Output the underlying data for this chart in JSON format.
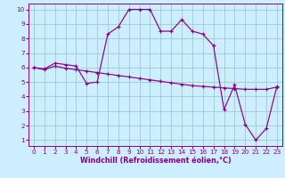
{
  "xlabel": "Windchill (Refroidissement éolien,°C)",
  "bg_color": "#cceeff",
  "grid_color": "#99cccc",
  "line_color": "#880088",
  "x_ticks": [
    0,
    1,
    2,
    3,
    4,
    5,
    6,
    7,
    8,
    9,
    10,
    11,
    12,
    13,
    14,
    15,
    16,
    17,
    18,
    19,
    20,
    21,
    22,
    23
  ],
  "y_ticks": [
    1,
    2,
    3,
    4,
    5,
    6,
    7,
    8,
    9,
    10
  ],
  "ylim": [
    0.6,
    10.4
  ],
  "xlim": [
    -0.5,
    23.5
  ],
  "line1_x": [
    0,
    1,
    2,
    3,
    4,
    5,
    6,
    7,
    8,
    9,
    10,
    11,
    12,
    13,
    14,
    15,
    16,
    17,
    18,
    19,
    20,
    21,
    22,
    23
  ],
  "line1_y": [
    6.0,
    5.9,
    6.3,
    6.2,
    6.1,
    4.9,
    5.0,
    8.3,
    8.8,
    10.0,
    10.0,
    10.0,
    8.5,
    8.5,
    9.3,
    8.5,
    8.3,
    7.5,
    3.1,
    4.8,
    2.1,
    1.0,
    1.8,
    4.7
  ],
  "line2_x": [
    0,
    1,
    2,
    3,
    4,
    5,
    6,
    7,
    8,
    9,
    10,
    11,
    12,
    13,
    14,
    15,
    16,
    17,
    18,
    19,
    20,
    21,
    22,
    23
  ],
  "line2_y": [
    6.0,
    5.85,
    6.1,
    5.95,
    5.85,
    5.75,
    5.65,
    5.55,
    5.45,
    5.35,
    5.25,
    5.15,
    5.05,
    4.95,
    4.85,
    4.75,
    4.7,
    4.65,
    4.6,
    4.55,
    4.5,
    4.5,
    4.5,
    4.65
  ],
  "tick_fontsize": 5.2,
  "xlabel_fontsize": 5.8
}
